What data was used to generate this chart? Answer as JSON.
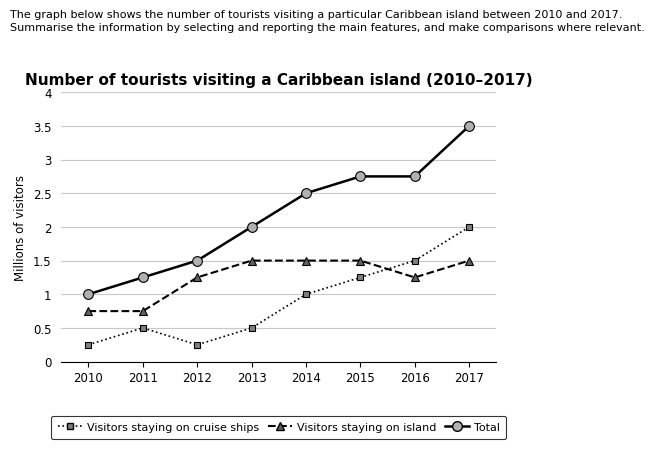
{
  "title": "Number of tourists visiting a Caribbean island (2010–2017)",
  "header_line1": "The graph below shows the number of tourists visiting a particular Caribbean island between 2010 and 2017.",
  "header_line2": "Summarise the information by selecting and reporting the main features, and make comparisons where relevant.",
  "ylabel": "Millions of visitors",
  "years": [
    2010,
    2011,
    2012,
    2013,
    2014,
    2015,
    2016,
    2017
  ],
  "cruise_ships": [
    0.25,
    0.5,
    0.25,
    0.5,
    1.0,
    1.25,
    1.5,
    2.0
  ],
  "on_island": [
    0.75,
    0.75,
    1.25,
    1.5,
    1.5,
    1.5,
    1.25,
    1.5
  ],
  "total": [
    1.0,
    1.25,
    1.5,
    2.0,
    2.5,
    2.75,
    2.75,
    3.5
  ],
  "ylim": [
    0,
    4
  ],
  "yticks": [
    0,
    0.5,
    1.0,
    1.5,
    2.0,
    2.5,
    3.0,
    3.5,
    4.0
  ],
  "ytick_labels": [
    "0",
    "0.5",
    "1",
    "1.5",
    "2",
    "2.5",
    "3",
    "3.5",
    "4"
  ],
  "background_color": "#ffffff",
  "grid_color": "#c8c8c8",
  "title_fontsize": 11,
  "header_fontsize": 8,
  "tick_fontsize": 8.5,
  "ylabel_fontsize": 8.5,
  "legend_fontsize": 8,
  "legend_label_cruise": "Visitors staying on cruise ships",
  "legend_label_island": "Visitors staying on island",
  "legend_label_total": "Total"
}
